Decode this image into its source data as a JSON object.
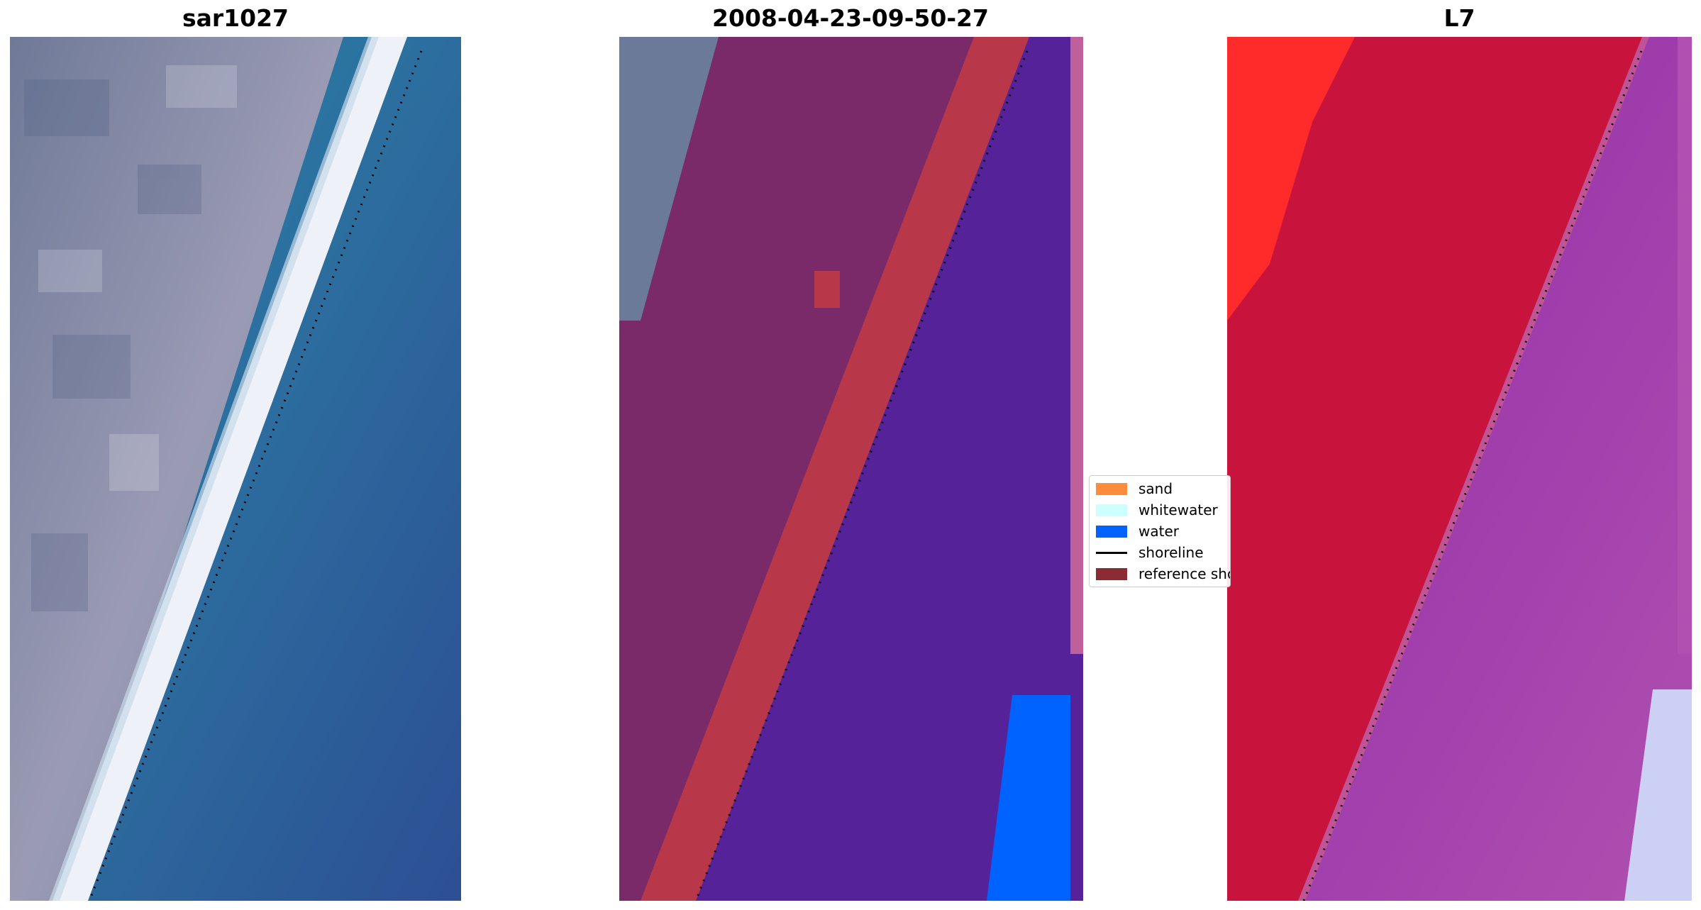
{
  "panels": [
    {
      "title": "sar1027",
      "kind": "rgb"
    },
    {
      "title": "2008-04-23-09-50-27",
      "kind": "classified"
    },
    {
      "title": "L7",
      "kind": "index"
    }
  ],
  "legend": {
    "items": [
      {
        "label": "sand",
        "color": "#fd8c3c",
        "type": "patch"
      },
      {
        "label": "whitewater",
        "color": "#ccffff",
        "type": "patch"
      },
      {
        "label": "water",
        "color": "#0063ff",
        "type": "patch"
      },
      {
        "label": "shoreline",
        "color": "#000000",
        "type": "line"
      },
      {
        "label": "reference shoreline",
        "color": "#8b2c33",
        "type": "patch"
      }
    ]
  },
  "colors": {
    "rgb_land": "#8a8aa6",
    "rgb_beach": "#f0f2f8",
    "rgb_water": "#2f64a0",
    "cls_land": "#7a2a68",
    "cls_beach": "#b8384a",
    "cls_water": "#55229a",
    "cls_water_blue": "#0063ff",
    "cls_edge": "#c0609a",
    "ndwi_land": "#c8143c",
    "ndwi_land_bright": "#ff2a2a",
    "ndwi_water": "#9a3aa8",
    "ndwi_water_pale": "#cdd0f5",
    "shoreline": "#000000"
  }
}
